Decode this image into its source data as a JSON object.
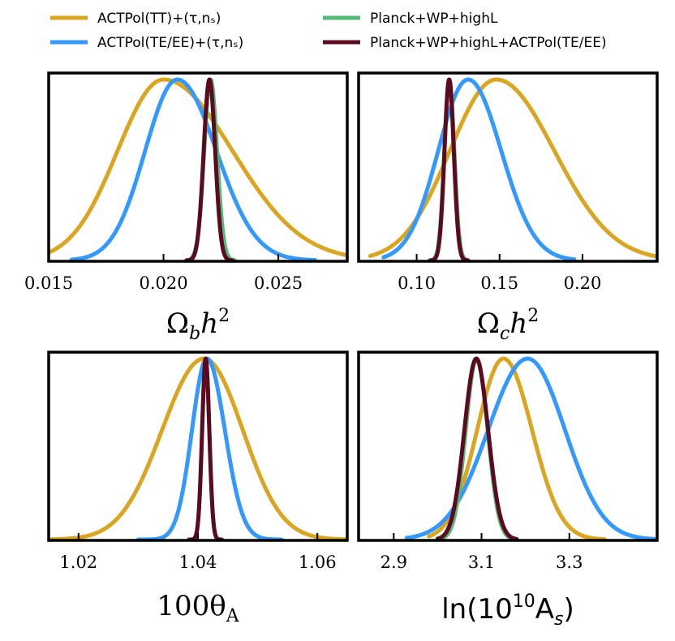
{
  "chart_data": {
    "type": "line",
    "subtype": "1D marginalized posterior distributions",
    "legend": [
      {
        "key": "tt",
        "label": "ACTPol(TT)+(τ,nₛ)",
        "color": "#DAA520"
      },
      {
        "key": "teee",
        "label": "ACTPol(TE/EE)+(τ,nₛ)",
        "color": "#3399FF"
      },
      {
        "key": "pl",
        "label": "Planck+WP+highL",
        "color": "#55BB77"
      },
      {
        "key": "plact",
        "label": "Planck+WP+highL+ACTPol(TE/EE)",
        "color": "#5C0A1F"
      }
    ],
    "panels": [
      {
        "id": "omegab",
        "xlabel_main": "Ω",
        "xlabel_sub": "b",
        "xlabel_rest": "h",
        "xlabel_sup": "2",
        "xlim": [
          0.015,
          0.028
        ],
        "ticks": [
          0.015,
          0.02,
          0.025
        ],
        "tick_labels": [
          "0.015",
          "0.020",
          "0.025"
        ],
        "series": [
          {
            "key": "tt",
            "mean": 0.02,
            "sigma_left": 0.002,
            "sigma_right": 0.003,
            "range": [
              0.0148,
              0.0282
            ]
          },
          {
            "key": "teee",
            "mean": 0.0206,
            "sigma_left": 0.0014,
            "sigma_right": 0.0017,
            "range": [
              0.016,
              0.0266
            ]
          },
          {
            "key": "pl",
            "mean": 0.02205,
            "sigma_left": 0.00028,
            "sigma_right": 0.00028,
            "range": [
              0.021,
              0.0231
            ]
          },
          {
            "key": "plact",
            "mean": 0.022,
            "sigma_left": 0.00025,
            "sigma_right": 0.00025,
            "range": [
              0.021,
              0.023
            ]
          }
        ]
      },
      {
        "id": "omegac",
        "xlabel_main": "Ω",
        "xlabel_sub": "c",
        "xlabel_rest": "h",
        "xlabel_sup": "2",
        "xlim": [
          0.065,
          0.245
        ],
        "ticks": [
          0.1,
          0.15,
          0.2
        ],
        "tick_labels": [
          "0.10",
          "0.15",
          "0.20"
        ],
        "series": [
          {
            "key": "tt",
            "mean": 0.148,
            "sigma_left": 0.028,
            "sigma_right": 0.035,
            "range": [
              0.072,
              0.245
            ]
          },
          {
            "key": "teee",
            "mean": 0.131,
            "sigma_left": 0.018,
            "sigma_right": 0.02,
            "range": [
              0.08,
              0.195
            ]
          },
          {
            "key": "pl",
            "mean": 0.1197,
            "sigma_left": 0.003,
            "sigma_right": 0.003,
            "range": [
              0.108,
              0.131
            ]
          },
          {
            "key": "plact",
            "mean": 0.1196,
            "sigma_left": 0.0028,
            "sigma_right": 0.0028,
            "range": [
              0.108,
              0.131
            ]
          }
        ]
      },
      {
        "id": "theta",
        "xlabel_main": "100θ",
        "xlabel_sub": "A",
        "xlabel_rest": "",
        "xlabel_sup": "",
        "xlim": [
          1.015,
          1.065
        ],
        "ticks": [
          1.02,
          1.04,
          1.06
        ],
        "tick_labels": [
          "1.02",
          "1.04",
          "1.06"
        ],
        "series": [
          {
            "key": "tt",
            "mean": 1.041,
            "sigma_left": 0.007,
            "sigma_right": 0.0065,
            "range": [
              1.015,
              1.065
            ]
          },
          {
            "key": "teee",
            "mean": 1.0415,
            "sigma_left": 0.0025,
            "sigma_right": 0.003,
            "range": [
              1.03,
              1.054
            ]
          },
          {
            "key": "pl",
            "mean": 1.0413,
            "sigma_left": 0.0006,
            "sigma_right": 0.0006,
            "range": [
              1.0385,
              1.044
            ]
          },
          {
            "key": "plact",
            "mean": 1.0413,
            "sigma_left": 0.0006,
            "sigma_right": 0.0006,
            "range": [
              1.0385,
              1.044
            ]
          }
        ]
      },
      {
        "id": "lnAs",
        "xlabel_main": "ln(10",
        "xlabel_sub": "s",
        "xlabel_rest": "",
        "xlabel_sup": "10",
        "xlabel_suffix": "A",
        "xlabel_close": ")",
        "xlim": [
          2.82,
          3.5
        ],
        "ticks": [
          2.9,
          3.1,
          3.3
        ],
        "tick_labels": [
          "2.9",
          "3.1",
          "3.3"
        ],
        "series": [
          {
            "key": "tt",
            "mean": 3.15,
            "sigma_left": 0.06,
            "sigma_right": 0.065,
            "range": [
              2.98,
              3.38
            ]
          },
          {
            "key": "teee",
            "mean": 3.205,
            "sigma_left": 0.09,
            "sigma_right": 0.085,
            "range": [
              2.93,
              3.5
            ]
          },
          {
            "key": "pl",
            "mean": 3.089,
            "sigma_left": 0.025,
            "sigma_right": 0.025,
            "range": [
              3.0,
              3.18
            ]
          },
          {
            "key": "plact",
            "mean": 3.088,
            "sigma_left": 0.027,
            "sigma_right": 0.027,
            "range": [
              3.0,
              3.18
            ]
          }
        ]
      }
    ]
  }
}
